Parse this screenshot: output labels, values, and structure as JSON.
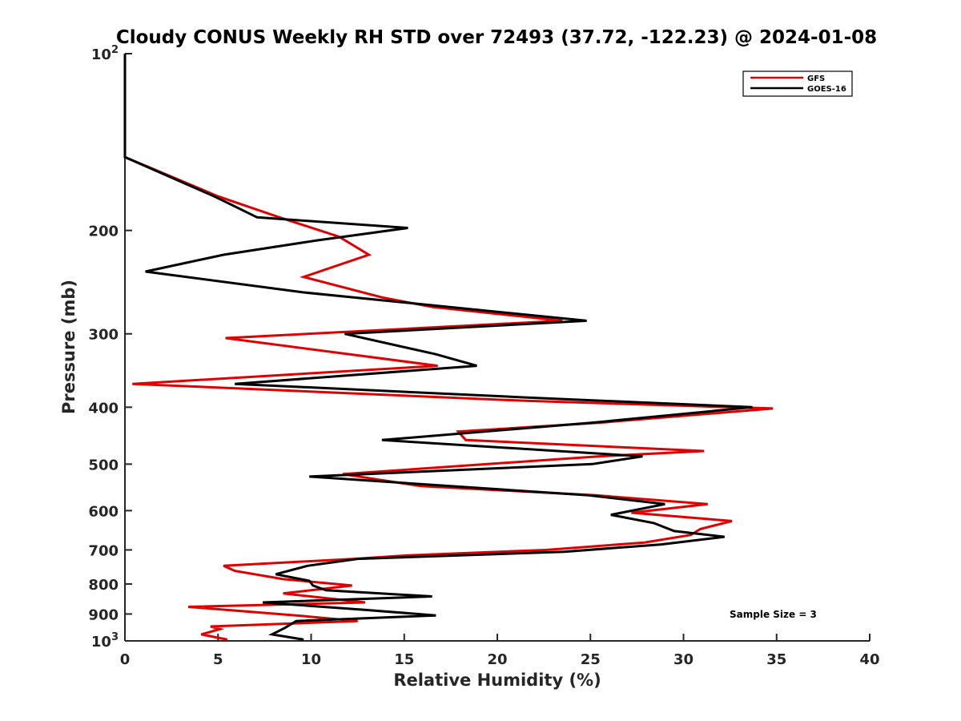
{
  "chart_data": {
    "type": "line",
    "title": "Cloudy CONUS Weekly RH STD over 72493 (37.72, -122.23) @ 2024-01-08",
    "xlabel": "Relative Humidity (%)",
    "ylabel": "Pressure (mb)",
    "xlim": [
      0,
      40
    ],
    "ylim": [
      100,
      1000
    ],
    "y_scale": "log",
    "y_reversed": true,
    "xticks": [
      0,
      5,
      10,
      15,
      20,
      25,
      30,
      35,
      40
    ],
    "xtick_labels": [
      "0",
      "5",
      "10",
      "15",
      "20",
      "25",
      "30",
      "35",
      "40"
    ],
    "yticks": [
      {
        "value": 100,
        "label": "10",
        "sup": "2"
      },
      {
        "value": 200,
        "label": "200",
        "sup": ""
      },
      {
        "value": 300,
        "label": "300",
        "sup": ""
      },
      {
        "value": 400,
        "label": "400",
        "sup": ""
      },
      {
        "value": 500,
        "label": "500",
        "sup": ""
      },
      {
        "value": 600,
        "label": "600",
        "sup": ""
      },
      {
        "value": 700,
        "label": "700",
        "sup": ""
      },
      {
        "value": 800,
        "label": "800",
        "sup": ""
      },
      {
        "value": 900,
        "label": "900",
        "sup": ""
      },
      {
        "value": 1000,
        "label": "10",
        "sup": "3"
      }
    ],
    "grid": false,
    "legend_position": "top-right",
    "annotation": "Sample Size = 3",
    "series": [
      {
        "name": "GFS",
        "color": "#e00000",
        "points": [
          [
            0,
            100
          ],
          [
            0,
            125
          ],
          [
            0,
            150
          ],
          [
            5,
            175
          ],
          [
            8.3,
            190
          ],
          [
            11.5,
            205
          ],
          [
            13.1,
            220
          ],
          [
            9.6,
            240
          ],
          [
            13.8,
            260
          ],
          [
            16.5,
            270
          ],
          [
            23.5,
            285
          ],
          [
            5.4,
            305
          ],
          [
            16.8,
            340
          ],
          [
            0.4,
            365
          ],
          [
            21.5,
            390
          ],
          [
            34.8,
            402
          ],
          [
            25.5,
            425
          ],
          [
            17.9,
            440
          ],
          [
            18.3,
            455
          ],
          [
            31.1,
            475
          ],
          [
            25.5,
            485
          ],
          [
            11.7,
            520
          ],
          [
            15.9,
            545
          ],
          [
            25.3,
            565
          ],
          [
            31.3,
            585
          ],
          [
            27.2,
            605
          ],
          [
            32.6,
            625
          ],
          [
            30.9,
            645
          ],
          [
            30.4,
            660
          ],
          [
            27.9,
            680
          ],
          [
            22.6,
            700
          ],
          [
            15.2,
            715
          ],
          [
            12.3,
            725
          ],
          [
            5.3,
            745
          ],
          [
            5.9,
            760
          ],
          [
            8.5,
            785
          ],
          [
            12.2,
            805
          ],
          [
            8.5,
            830
          ],
          [
            12.9,
            860
          ],
          [
            3.4,
            875
          ],
          [
            9.2,
            905
          ],
          [
            12.5,
            925
          ],
          [
            4.6,
            945
          ],
          [
            5.1,
            955
          ],
          [
            4.1,
            975
          ],
          [
            5.5,
            995
          ]
        ]
      },
      {
        "name": "GOES-16",
        "color": "#000000",
        "points": [
          [
            0,
            100
          ],
          [
            0,
            125
          ],
          [
            0,
            150
          ],
          [
            4.8,
            175
          ],
          [
            7.1,
            190
          ],
          [
            15.2,
            198
          ],
          [
            10.3,
            208
          ],
          [
            5.3,
            220
          ],
          [
            1.1,
            235
          ],
          [
            9.6,
            255
          ],
          [
            24.8,
            285
          ],
          [
            11.8,
            300
          ],
          [
            16.7,
            325
          ],
          [
            18.9,
            340
          ],
          [
            5.9,
            365
          ],
          [
            21.5,
            385
          ],
          [
            33.7,
            400
          ],
          [
            25.1,
            425
          ],
          [
            13.8,
            455
          ],
          [
            27.8,
            485
          ],
          [
            25.1,
            500
          ],
          [
            9.9,
            525
          ],
          [
            24.9,
            565
          ],
          [
            29.0,
            585
          ],
          [
            26.1,
            610
          ],
          [
            28.4,
            630
          ],
          [
            29.5,
            650
          ],
          [
            32.2,
            665
          ],
          [
            28.8,
            685
          ],
          [
            23.6,
            705
          ],
          [
            12.5,
            725
          ],
          [
            9.8,
            745
          ],
          [
            8.1,
            770
          ],
          [
            9.9,
            790
          ],
          [
            10.1,
            805
          ],
          [
            10.8,
            820
          ],
          [
            16.5,
            840
          ],
          [
            7.4,
            860
          ],
          [
            12.8,
            885
          ],
          [
            16.7,
            905
          ],
          [
            9.2,
            925
          ],
          [
            8.6,
            950
          ],
          [
            7.9,
            975
          ],
          [
            9.6,
            995
          ]
        ]
      }
    ]
  }
}
